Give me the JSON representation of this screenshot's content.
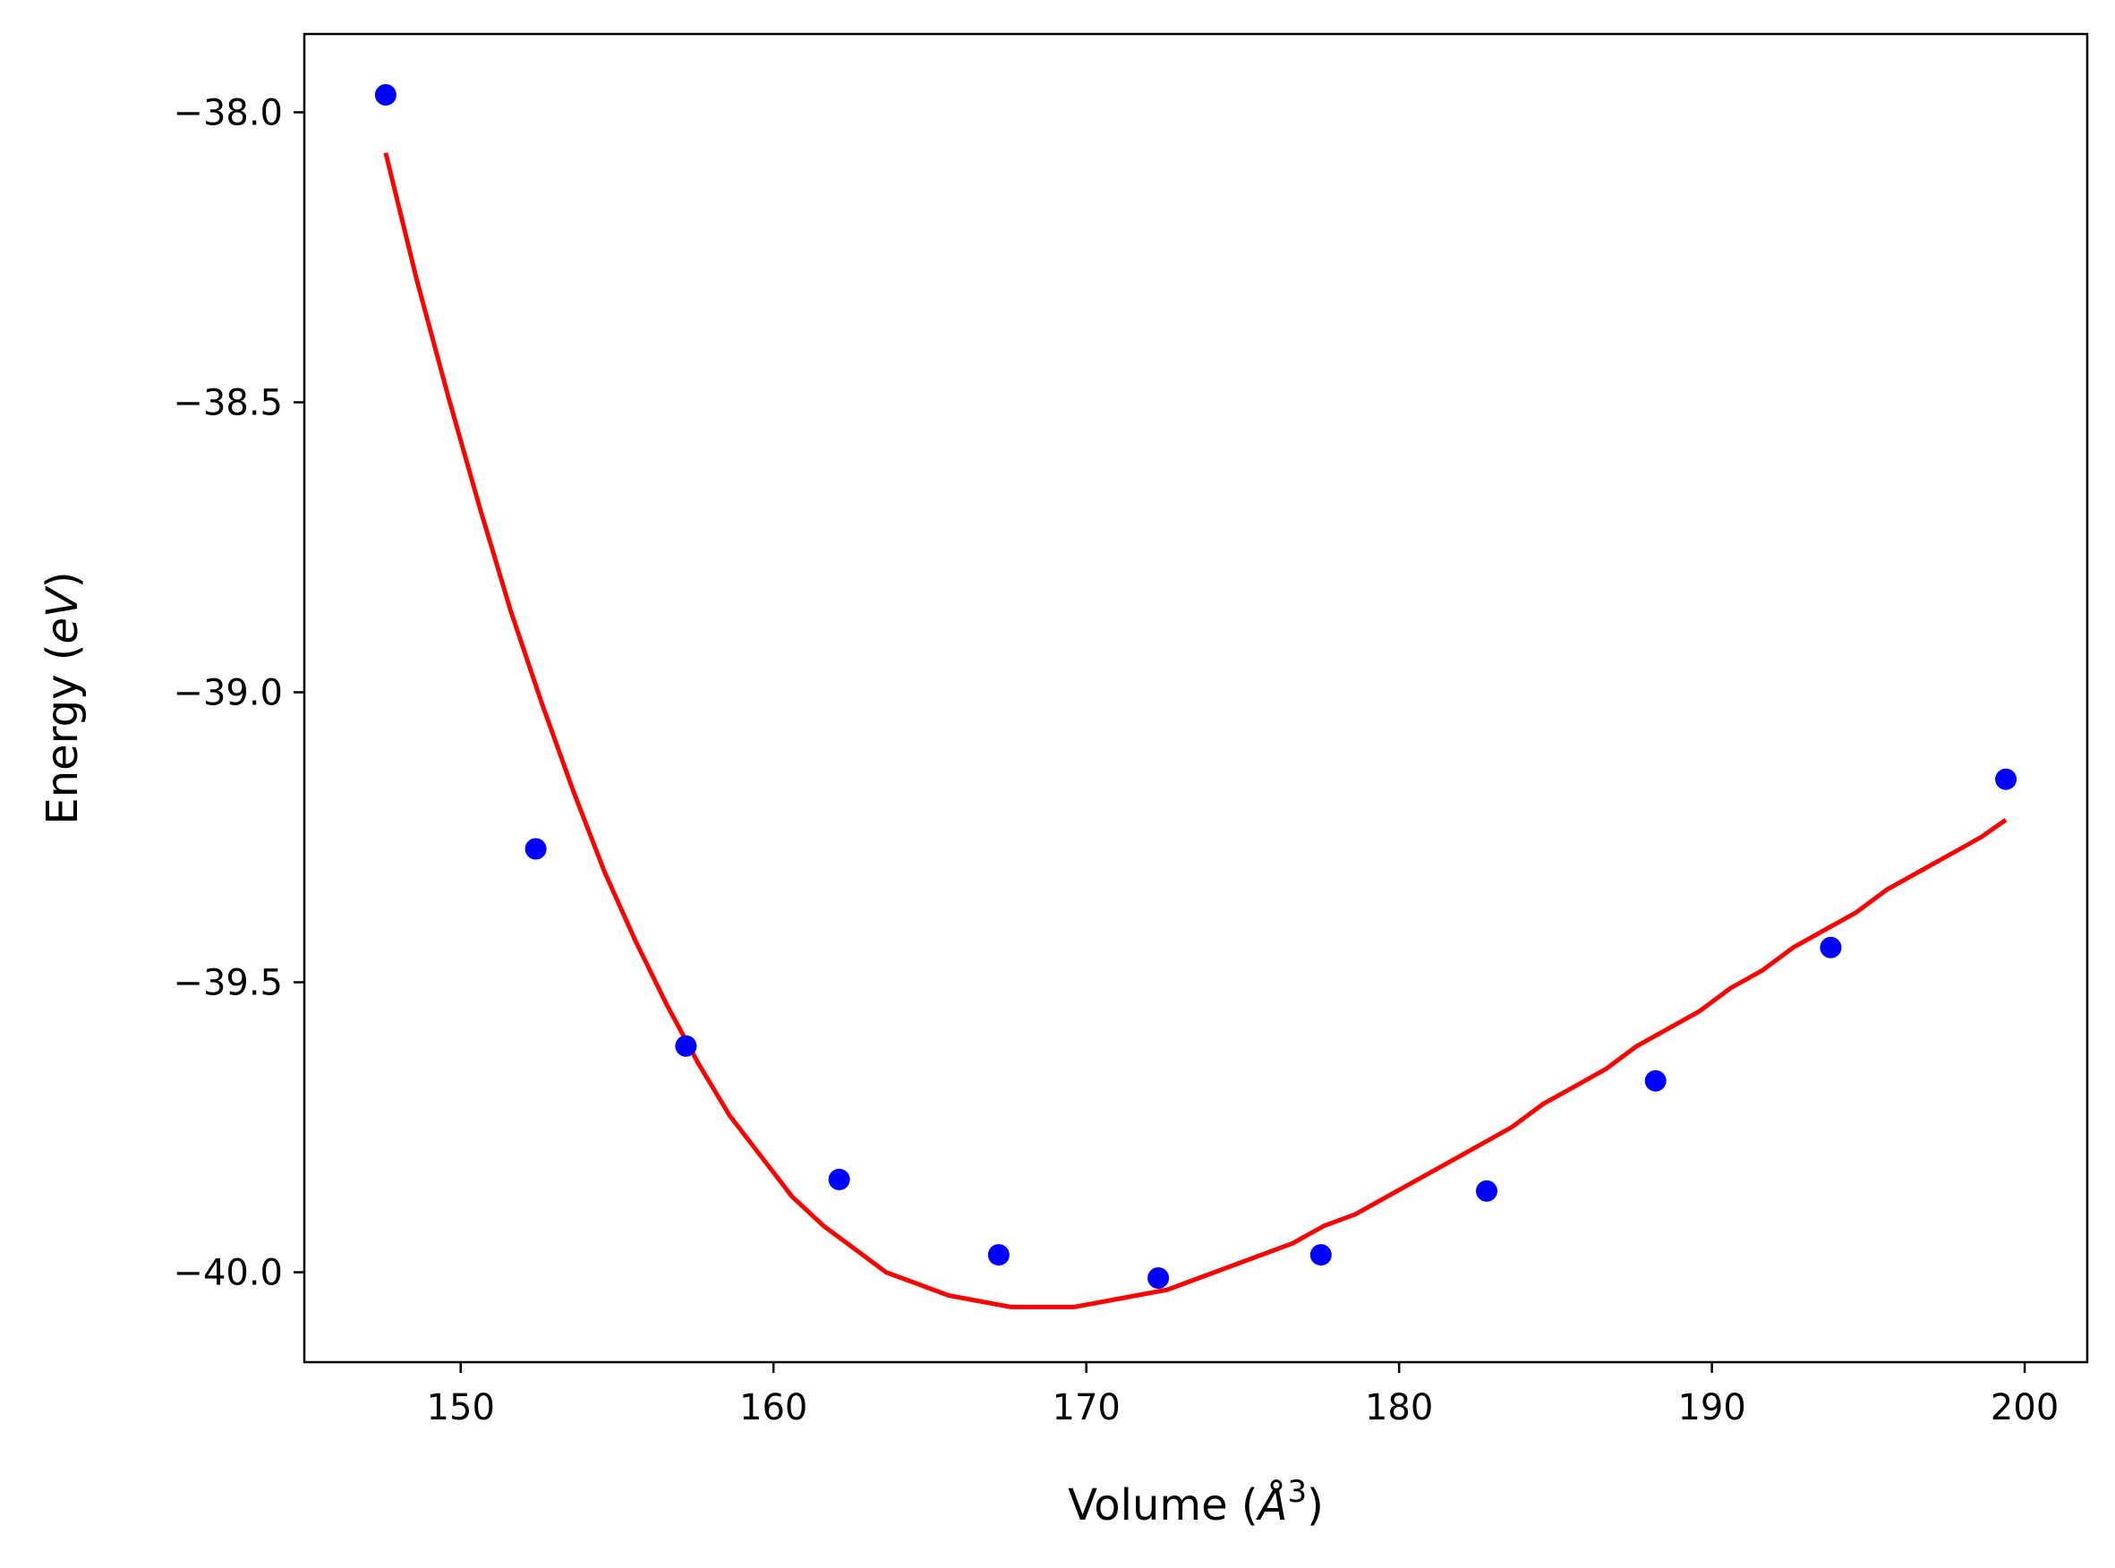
{
  "chart_data": {
    "type": "scatter",
    "title": "",
    "xlabel": "Volume (Å³)",
    "ylabel": "Energy (eV)",
    "xlabel_parts": {
      "prefix": "Volume (",
      "symbol": "Å",
      "sup": "3",
      "suffix": ")"
    },
    "ylabel_parts": {
      "prefix": "Energy (",
      "symbol": "eV",
      "suffix": ")"
    },
    "xlim": [
      145.0,
      202.0
    ],
    "ylim": [
      -40.155,
      -37.865
    ],
    "xticks": [
      150,
      160,
      170,
      180,
      190,
      200
    ],
    "xtick_labels": [
      "150",
      "160",
      "170",
      "180",
      "190",
      "200"
    ],
    "yticks": [
      -38.0,
      -38.5,
      -39.0,
      -39.5,
      -40.0
    ],
    "ytick_labels": [
      "−38.0",
      "−38.5",
      "−39.0",
      "−39.5",
      "−40.0"
    ],
    "grid": false,
    "legend": "none",
    "series": [
      {
        "kind": "scatter",
        "color": "#0000ff",
        "x": [
          147.6,
          152.4,
          157.2,
          162.1,
          167.2,
          172.3,
          177.5,
          182.8,
          188.2,
          193.8,
          199.4
        ],
        "y": [
          -37.97,
          -39.27,
          -39.61,
          -39.84,
          -39.97,
          -40.01,
          -39.97,
          -39.86,
          -39.67,
          -39.44,
          -39.15
        ]
      },
      {
        "kind": "line",
        "color": "#ff0000",
        "x": [
          147.6,
          148.6,
          149.6,
          150.6,
          151.6,
          152.6,
          153.6,
          154.6,
          155.6,
          156.6,
          157.6,
          158.6,
          159.6,
          160.6,
          161.6,
          162.6,
          163.6,
          164.6,
          165.6,
          166.6,
          167.6,
          168.6,
          169.6,
          170.6,
          171.6,
          172.6,
          173.6,
          174.6,
          175.6,
          176.6,
          177.6,
          178.6,
          179.6,
          180.6,
          181.6,
          182.6,
          183.6,
          184.6,
          185.6,
          186.6,
          187.6,
          188.6,
          189.6,
          190.6,
          191.6,
          192.6,
          193.6,
          194.6,
          195.6,
          196.6,
          197.6,
          198.6,
          199.4
        ],
        "y": [
          -38.07,
          -38.29,
          -38.49,
          -38.68,
          -38.86,
          -39.02,
          -39.17,
          -39.31,
          -39.43,
          -39.54,
          -39.64,
          -39.73,
          -39.8,
          -39.87,
          -39.92,
          -39.96,
          -40.0,
          -40.02,
          -40.04,
          -40.05,
          -40.06,
          -40.06,
          -40.06,
          -40.05,
          -40.04,
          -40.03,
          -40.01,
          -39.99,
          -39.97,
          -39.95,
          -39.92,
          -39.9,
          -39.87,
          -39.84,
          -39.81,
          -39.78,
          -39.75,
          -39.71,
          -39.68,
          -39.65,
          -39.61,
          -39.58,
          -39.55,
          -39.51,
          -39.48,
          -39.44,
          -39.41,
          -39.38,
          -39.34,
          -39.31,
          -39.28,
          -39.25,
          -39.22
        ]
      }
    ]
  }
}
